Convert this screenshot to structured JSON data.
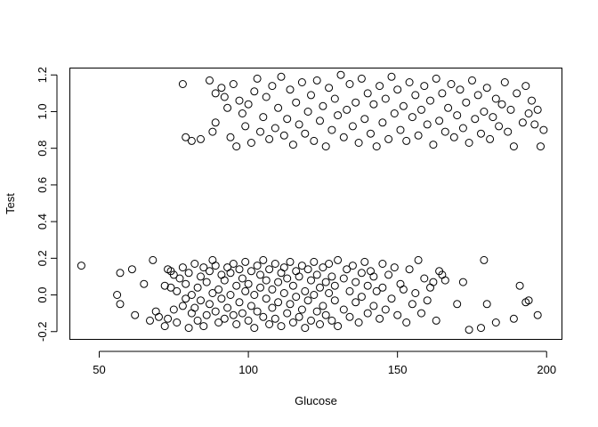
{
  "chart_data": {
    "type": "scatter",
    "title": "",
    "xlabel": "Glucose",
    "ylabel": "Test",
    "xlim": [
      40,
      205
    ],
    "ylim": [
      -0.24,
      1.24
    ],
    "xticks": [
      50,
      100,
      150,
      200
    ],
    "xtick_labels": [
      "50",
      "100",
      "150",
      "200"
    ],
    "yticks": [
      -0.2,
      0.0,
      0.2,
      0.4,
      0.6,
      0.8,
      1.0,
      1.2
    ],
    "ytick_labels": [
      "-0.2",
      "0.0",
      "0.2",
      "0.4",
      "0.6",
      "0.8",
      "1.0",
      "1.2"
    ],
    "grid": false,
    "legend": "none",
    "marker": "open-circle",
    "series": [
      {
        "values": [
          [
            44,
            0.16
          ],
          [
            56,
            0.0
          ],
          [
            57,
            -0.05
          ],
          [
            57,
            0.12
          ],
          [
            61,
            0.14
          ],
          [
            62,
            -0.11
          ],
          [
            65,
            0.06
          ],
          [
            67,
            -0.14
          ],
          [
            68,
            0.19
          ],
          [
            69,
            -0.09
          ],
          [
            70,
            -0.12
          ],
          [
            72,
            0.05
          ],
          [
            72,
            -0.17
          ],
          [
            73,
            0.14
          ],
          [
            73,
            -0.13
          ],
          [
            74,
            0.04
          ],
          [
            74,
            0.13
          ],
          [
            75,
            0.11
          ],
          [
            75,
            -0.08
          ],
          [
            76,
            0.02
          ],
          [
            76,
            -0.15
          ],
          [
            77,
            0.09
          ],
          [
            78,
            -0.06
          ],
          [
            78,
            0.15
          ],
          [
            79,
            -0.02
          ],
          [
            79,
            0.06
          ],
          [
            80,
            -0.18
          ],
          [
            80,
            0.12
          ],
          [
            81,
            0.0
          ],
          [
            81,
            -0.1
          ],
          [
            82,
            0.17
          ],
          [
            82,
            -0.07
          ],
          [
            83,
            0.04
          ],
          [
            83,
            -0.14
          ],
          [
            84,
            0.1
          ],
          [
            84,
            -0.03
          ],
          [
            85,
            0.15
          ],
          [
            85,
            -0.17
          ],
          [
            86,
            0.07
          ],
          [
            86,
            -0.11
          ],
          [
            87,
            0.13
          ],
          [
            87,
            -0.05
          ],
          [
            88,
            0.19
          ],
          [
            88,
            0.01
          ],
          [
            89,
            -0.09
          ],
          [
            89,
            0.16
          ],
          [
            90,
            0.03
          ],
          [
            90,
            -0.15
          ],
          [
            91,
            0.11
          ],
          [
            91,
            -0.02
          ],
          [
            92,
            0.08
          ],
          [
            92,
            -0.13
          ],
          [
            93,
            0.15
          ],
          [
            93,
            -0.07
          ],
          [
            94,
            0.0
          ],
          [
            94,
            0.12
          ],
          [
            95,
            -0.11
          ],
          [
            95,
            0.17
          ],
          [
            96,
            0.05
          ],
          [
            96,
            -0.16
          ],
          [
            97,
            -0.04
          ],
          [
            97,
            0.14
          ],
          [
            98,
            0.09
          ],
          [
            98,
            -0.1
          ],
          [
            99,
            0.02
          ],
          [
            99,
            0.18
          ],
          [
            100,
            -0.14
          ],
          [
            100,
            0.06
          ],
          [
            101,
            -0.06
          ],
          [
            101,
            0.13
          ],
          [
            102,
            0.0
          ],
          [
            102,
            -0.18
          ],
          [
            103,
            0.16
          ],
          [
            103,
            -0.09
          ],
          [
            104,
            0.04
          ],
          [
            104,
            0.11
          ],
          [
            105,
            -0.12
          ],
          [
            105,
            0.19
          ],
          [
            106,
            -0.02
          ],
          [
            106,
            0.08
          ],
          [
            107,
            -0.16
          ],
          [
            107,
            0.14
          ],
          [
            108,
            0.03
          ],
          [
            108,
            -0.07
          ],
          [
            109,
            0.17
          ],
          [
            109,
            -0.13
          ],
          [
            110,
            0.07
          ],
          [
            110,
            -0.04
          ],
          [
            111,
            0.12
          ],
          [
            111,
            -0.17
          ],
          [
            112,
            0.01
          ],
          [
            112,
            0.15
          ],
          [
            113,
            -0.1
          ],
          [
            113,
            0.09
          ],
          [
            114,
            -0.05
          ],
          [
            114,
            0.18
          ],
          [
            115,
            0.05
          ],
          [
            115,
            -0.15
          ],
          [
            116,
            0.13
          ],
          [
            116,
            -0.01
          ],
          [
            117,
            -0.12
          ],
          [
            117,
            0.1
          ],
          [
            118,
            0.16
          ],
          [
            118,
            -0.08
          ],
          [
            119,
            0.02
          ],
          [
            119,
            -0.18
          ],
          [
            120,
            0.14
          ],
          [
            120,
            -0.03
          ],
          [
            121,
            0.08
          ],
          [
            121,
            -0.14
          ],
          [
            122,
            0.18
          ],
          [
            122,
            0.0
          ],
          [
            123,
            -0.09
          ],
          [
            123,
            0.11
          ],
          [
            124,
            0.04
          ],
          [
            124,
            -0.16
          ],
          [
            125,
            0.15
          ],
          [
            125,
            -0.06
          ],
          [
            126,
            0.07
          ],
          [
            126,
            -0.11
          ],
          [
            127,
            0.17
          ],
          [
            127,
            0.01
          ],
          [
            128,
            -0.14
          ],
          [
            128,
            0.1
          ],
          [
            129,
            0.05
          ],
          [
            129,
            -0.03
          ],
          [
            130,
            0.19
          ],
          [
            130,
            -0.17
          ],
          [
            132,
            0.09
          ],
          [
            132,
            -0.08
          ],
          [
            133,
            0.14
          ],
          [
            134,
            -0.12
          ],
          [
            134,
            0.02
          ],
          [
            135,
            0.16
          ],
          [
            136,
            -0.04
          ],
          [
            136,
            0.07
          ],
          [
            137,
            -0.15
          ],
          [
            138,
            0.12
          ],
          [
            138,
            -0.01
          ],
          [
            139,
            0.18
          ],
          [
            140,
            -0.1
          ],
          [
            140,
            0.05
          ],
          [
            141,
            0.13
          ],
          [
            142,
            -0.06
          ],
          [
            142,
            0.1
          ],
          [
            143,
            0.02
          ],
          [
            144,
            -0.13
          ],
          [
            145,
            0.17
          ],
          [
            145,
            0.04
          ],
          [
            146,
            -0.08
          ],
          [
            147,
            0.11
          ],
          [
            148,
            -0.02
          ],
          [
            149,
            0.15
          ],
          [
            150,
            -0.11
          ],
          [
            151,
            0.06
          ],
          [
            152,
            0.03
          ],
          [
            153,
            -0.15
          ],
          [
            154,
            0.14
          ],
          [
            155,
            -0.05
          ],
          [
            156,
            0.01
          ],
          [
            157,
            0.19
          ],
          [
            158,
            -0.1
          ],
          [
            159,
            0.09
          ],
          [
            160,
            -0.03
          ],
          [
            161,
            0.04
          ],
          [
            162,
            0.07
          ],
          [
            163,
            -0.14
          ],
          [
            164,
            0.13
          ],
          [
            165,
            0.11
          ],
          [
            166,
            0.08
          ],
          [
            170,
            -0.05
          ],
          [
            172,
            0.07
          ],
          [
            174,
            -0.19
          ],
          [
            178,
            -0.18
          ],
          [
            179,
            0.19
          ],
          [
            180,
            -0.05
          ],
          [
            183,
            -0.15
          ],
          [
            189,
            -0.13
          ],
          [
            191,
            0.05
          ],
          [
            193,
            -0.04
          ],
          [
            194,
            -0.03
          ],
          [
            197,
            -0.11
          ],
          [
            78,
            1.15
          ],
          [
            79,
            0.86
          ],
          [
            81,
            0.84
          ],
          [
            84,
            0.85
          ],
          [
            87,
            1.17
          ],
          [
            88,
            0.89
          ],
          [
            89,
            0.94
          ],
          [
            89,
            1.1
          ],
          [
            91,
            1.13
          ],
          [
            92,
            1.08
          ],
          [
            93,
            1.02
          ],
          [
            94,
            0.86
          ],
          [
            95,
            1.15
          ],
          [
            96,
            0.81
          ],
          [
            97,
            1.06
          ],
          [
            98,
            0.99
          ],
          [
            99,
            0.92
          ],
          [
            100,
            1.04
          ],
          [
            101,
            0.83
          ],
          [
            102,
            1.11
          ],
          [
            103,
            1.18
          ],
          [
            104,
            0.89
          ],
          [
            105,
            0.97
          ],
          [
            106,
            1.08
          ],
          [
            107,
            0.85
          ],
          [
            108,
            1.14
          ],
          [
            109,
            0.91
          ],
          [
            110,
            1.02
          ],
          [
            111,
            1.19
          ],
          [
            112,
            0.87
          ],
          [
            113,
            0.96
          ],
          [
            114,
            1.12
          ],
          [
            115,
            0.82
          ],
          [
            116,
            1.05
          ],
          [
            117,
            0.93
          ],
          [
            118,
            1.16
          ],
          [
            119,
            0.88
          ],
          [
            120,
            1.0
          ],
          [
            121,
            1.09
          ],
          [
            122,
            0.84
          ],
          [
            123,
            1.17
          ],
          [
            124,
            0.95
          ],
          [
            125,
            1.03
          ],
          [
            126,
            0.81
          ],
          [
            127,
            1.13
          ],
          [
            128,
            0.9
          ],
          [
            129,
            1.07
          ],
          [
            130,
            0.98
          ],
          [
            131,
            1.2
          ],
          [
            132,
            0.86
          ],
          [
            133,
            1.01
          ],
          [
            134,
            1.15
          ],
          [
            135,
            0.92
          ],
          [
            136,
            1.05
          ],
          [
            137,
            0.83
          ],
          [
            138,
            1.18
          ],
          [
            139,
            0.96
          ],
          [
            140,
            1.1
          ],
          [
            141,
            0.88
          ],
          [
            142,
            1.04
          ],
          [
            143,
            0.81
          ],
          [
            144,
            1.14
          ],
          [
            145,
            0.94
          ],
          [
            146,
            1.07
          ],
          [
            147,
            0.85
          ],
          [
            148,
            1.19
          ],
          [
            149,
            0.99
          ],
          [
            150,
            1.12
          ],
          [
            151,
            0.9
          ],
          [
            152,
            1.03
          ],
          [
            153,
            0.84
          ],
          [
            154,
            1.16
          ],
          [
            155,
            0.97
          ],
          [
            156,
            1.09
          ],
          [
            157,
            0.87
          ],
          [
            158,
            1.01
          ],
          [
            159,
            1.14
          ],
          [
            160,
            0.93
          ],
          [
            161,
            1.06
          ],
          [
            162,
            0.82
          ],
          [
            163,
            1.18
          ],
          [
            164,
            0.95
          ],
          [
            165,
            1.1
          ],
          [
            166,
            0.89
          ],
          [
            167,
            1.02
          ],
          [
            168,
            1.15
          ],
          [
            169,
            0.86
          ],
          [
            170,
            0.98
          ],
          [
            171,
            1.12
          ],
          [
            172,
            0.91
          ],
          [
            173,
            1.05
          ],
          [
            174,
            0.83
          ],
          [
            175,
            1.17
          ],
          [
            176,
            0.96
          ],
          [
            177,
            1.09
          ],
          [
            178,
            0.88
          ],
          [
            179,
            1.0
          ],
          [
            180,
            1.13
          ],
          [
            181,
            0.85
          ],
          [
            182,
            0.97
          ],
          [
            183,
            1.07
          ],
          [
            184,
            0.92
          ],
          [
            185,
            1.04
          ],
          [
            186,
            1.16
          ],
          [
            187,
            0.89
          ],
          [
            188,
            1.01
          ],
          [
            189,
            0.81
          ],
          [
            190,
            1.1
          ],
          [
            192,
            0.94
          ],
          [
            193,
            1.14
          ],
          [
            194,
            0.99
          ],
          [
            195,
            1.06
          ],
          [
            196,
            0.93
          ],
          [
            197,
            1.01
          ],
          [
            198,
            0.81
          ],
          [
            199,
            0.9
          ]
        ]
      }
    ]
  }
}
